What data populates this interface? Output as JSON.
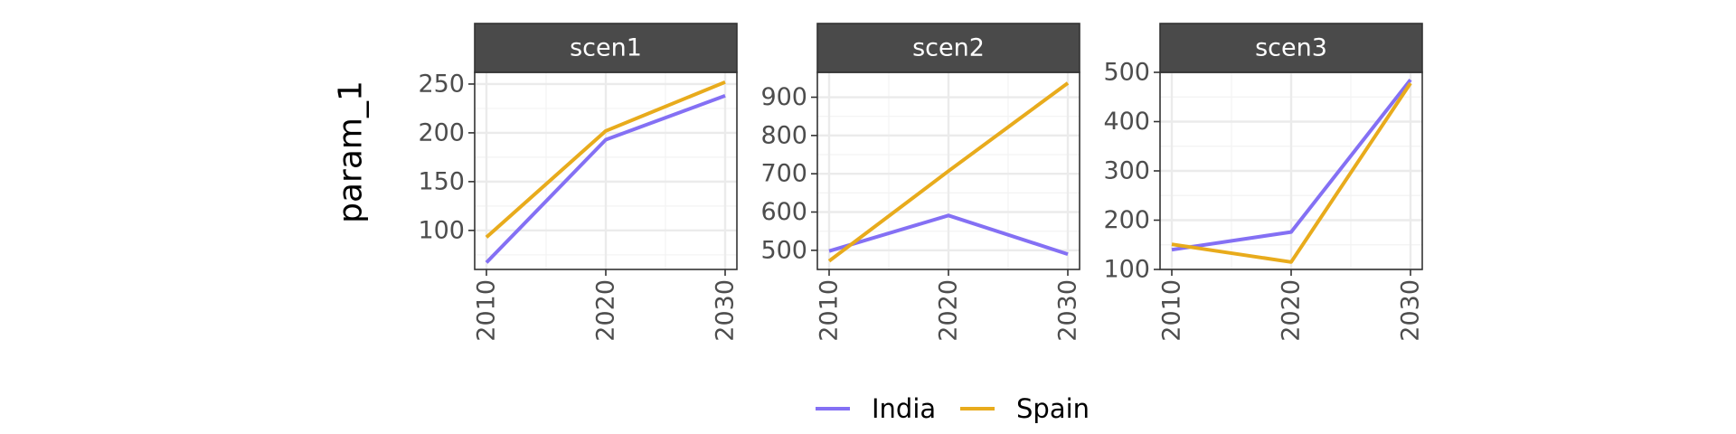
{
  "chart_data": {
    "type": "line",
    "ylabel": "param_1",
    "x": [
      2010,
      2020,
      2030
    ],
    "legend": {
      "position": "bottom",
      "entries": [
        "India",
        "Spain"
      ]
    },
    "colors": {
      "India": "#8470f4",
      "Spain": "#e8ab1c",
      "strip": "#4a4a4a",
      "grid": "#ebebeb"
    },
    "grid": true,
    "panels": [
      {
        "name": "scen1",
        "ylim": [
          60,
          262
        ],
        "yticks": [
          100,
          150,
          200,
          250
        ],
        "series": [
          {
            "name": "India",
            "values": [
              67,
              193,
              238
            ]
          },
          {
            "name": "Spain",
            "values": [
              93,
              202,
              252
            ]
          }
        ]
      },
      {
        "name": "scen2",
        "ylim": [
          450,
          965
        ],
        "yticks": [
          500,
          600,
          700,
          800,
          900
        ],
        "series": [
          {
            "name": "India",
            "values": [
              498,
              591,
              490
            ]
          },
          {
            "name": "Spain",
            "values": [
              472,
              707,
              937
            ]
          }
        ]
      },
      {
        "name": "scen3",
        "ylim": [
          100,
          500
        ],
        "yticks": [
          100,
          200,
          300,
          400,
          500
        ],
        "series": [
          {
            "name": "India",
            "values": [
              140,
              176,
              485
            ]
          },
          {
            "name": "Spain",
            "values": [
              151,
              115,
              478
            ]
          }
        ]
      }
    ]
  }
}
